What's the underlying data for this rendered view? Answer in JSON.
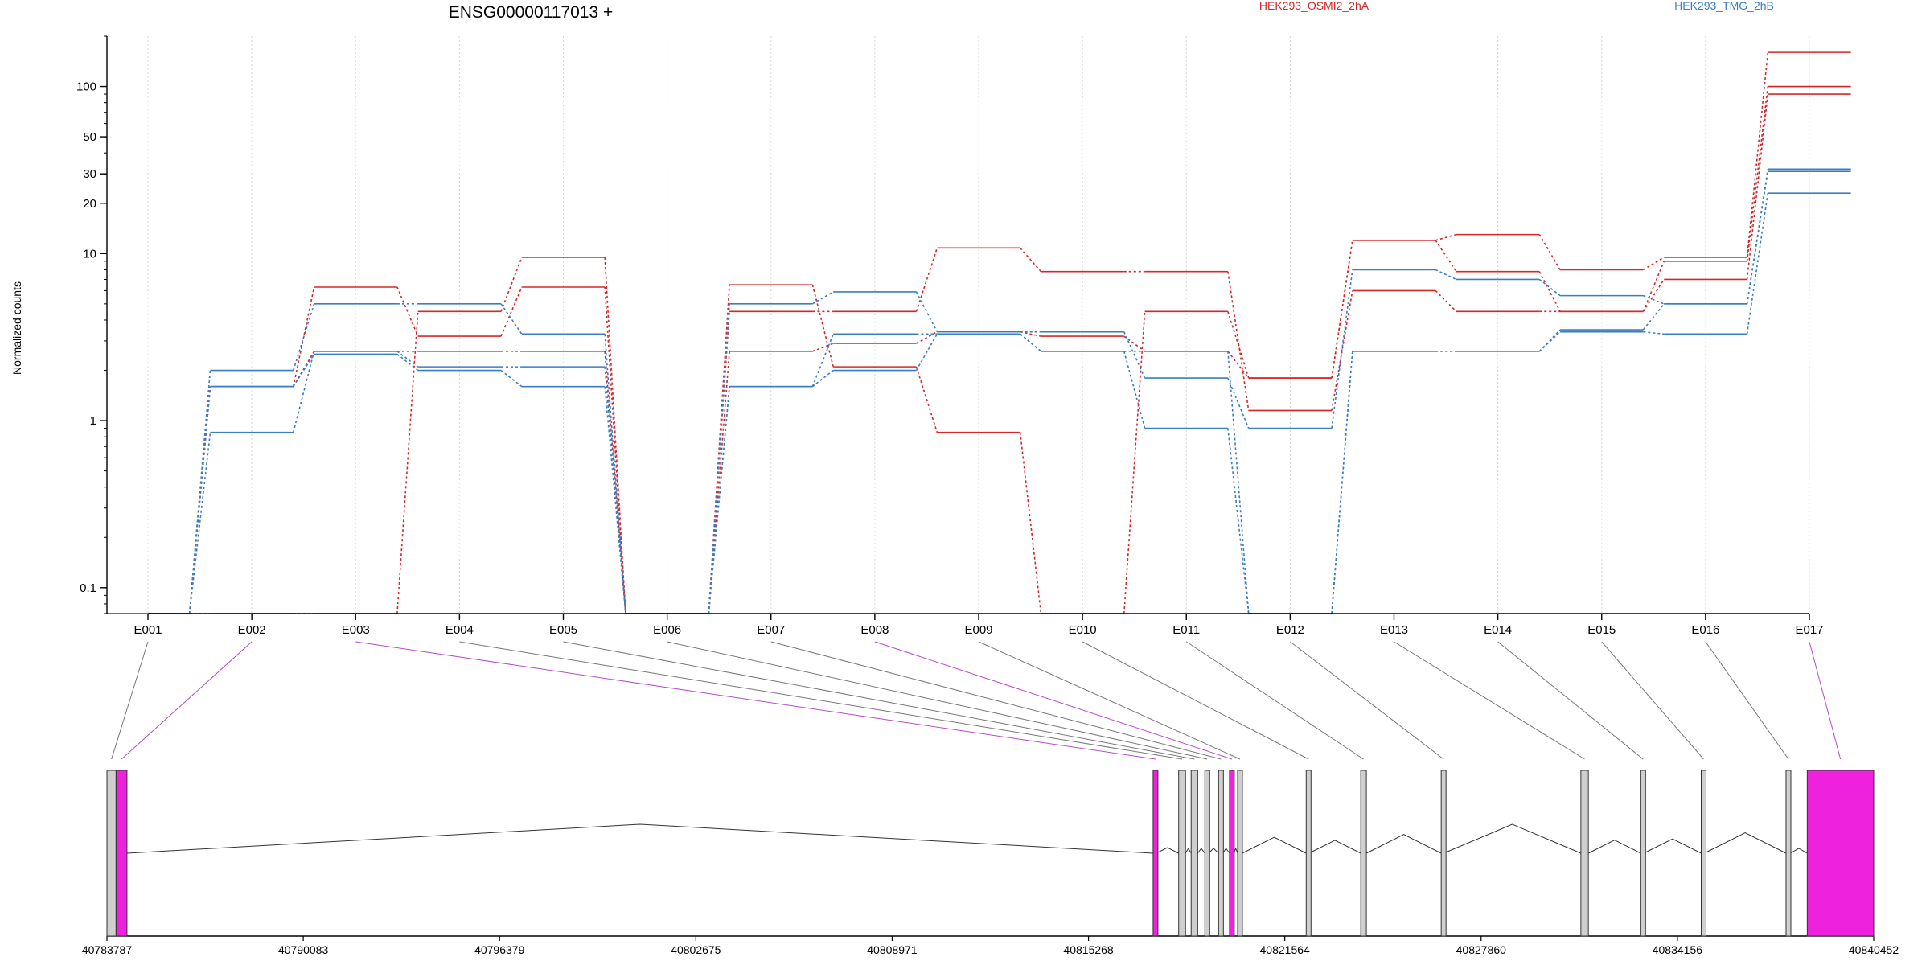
{
  "chart_data": {
    "type": "line",
    "title": "ENSG00000117013 +",
    "ylabel": "Normalized counts",
    "xlabel": "",
    "y_scale": "log",
    "ylim": [
      0.07,
      200
    ],
    "y_ticks": [
      "0.1",
      "1",
      "10",
      "20",
      "30",
      "50",
      "100"
    ],
    "y_tick_values": [
      0.1,
      1,
      10,
      20,
      30,
      50,
      100
    ],
    "legend": [
      {
        "name": "HEK293_OSMI2_2hA",
        "color": "#d62728"
      },
      {
        "name": "HEK293_TMG_2hB",
        "color": "#3a7dc2"
      }
    ],
    "legend_position": "top",
    "categories": [
      "E001",
      "E002",
      "E003",
      "E004",
      "E005",
      "E006",
      "E007",
      "E008",
      "E009",
      "E010",
      "E011",
      "E012",
      "E013",
      "E014",
      "E015",
      "E016",
      "E017"
    ],
    "series": [
      {
        "group": "HEK293_OSMI2_2hA",
        "color": "#d62728",
        "values": [
          0.07,
          0.07,
          0.07,
          4.5,
          9.5,
          0.07,
          6.5,
          2.1,
          0.85,
          0.07,
          4.5,
          1.8,
          12,
          13,
          8,
          9.5,
          160
        ]
      },
      {
        "group": "HEK293_OSMI2_2hA",
        "color": "#d62728",
        "values": [
          0.07,
          1.6,
          6.3,
          3.2,
          6.3,
          0.07,
          4.5,
          4.5,
          10.8,
          7.8,
          7.8,
          1.15,
          6,
          4.5,
          4.5,
          7,
          90
        ]
      },
      {
        "group": "HEK293_OSMI2_2hA",
        "color": "#d62728",
        "values": [
          0.07,
          1.6,
          2.6,
          2.6,
          2.6,
          0.07,
          2.6,
          2.9,
          3.4,
          3.2,
          2.6,
          1.8,
          12,
          7.8,
          4.5,
          9,
          100
        ]
      },
      {
        "group": "HEK293_TMG_2hB",
        "color": "#3a7dc2",
        "values": [
          0.07,
          2.0,
          5.0,
          5.0,
          3.3,
          0.07,
          5.0,
          5.9,
          3.4,
          3.4,
          1.8,
          0.9,
          8.0,
          7.0,
          5.6,
          5.0,
          32
        ]
      },
      {
        "group": "HEK293_TMG_2hB",
        "color": "#3a7dc2",
        "values": [
          0.07,
          0.85,
          2.6,
          2.1,
          2.1,
          0.07,
          1.6,
          3.3,
          3.3,
          2.6,
          2.6,
          0.07,
          2.6,
          2.6,
          3.5,
          5.0,
          31
        ]
      },
      {
        "group": "HEK293_TMG_2hB",
        "color": "#3a7dc2",
        "values": [
          0.07,
          1.6,
          2.5,
          2.0,
          1.6,
          0.07,
          1.6,
          2.0,
          3.3,
          2.6,
          0.9,
          0.07,
          2.6,
          2.6,
          3.4,
          3.3,
          23
        ]
      }
    ],
    "gene_model": {
      "coord_range": [
        40783787,
        40840452
      ],
      "coord_ticks": [
        40783787,
        40790083,
        40796379,
        40802675,
        40808971,
        40815268,
        40821564,
        40827860,
        40834156,
        40840452
      ],
      "highlight_color": "#ee22dd",
      "exons": [
        {
          "id": "E001",
          "start": 40783787,
          "end": 40784080,
          "highlight": false
        },
        {
          "id": "E002",
          "start": 40784080,
          "end": 40784430,
          "highlight": true
        },
        {
          "id": "E003",
          "start": 40817340,
          "end": 40817440,
          "highlight": true
        },
        {
          "id": "E004",
          "start": 40818160,
          "end": 40818380,
          "highlight": false
        },
        {
          "id": "E005",
          "start": 40818560,
          "end": 40818770,
          "highlight": false
        },
        {
          "id": "E006",
          "start": 40819000,
          "end": 40819120,
          "highlight": false
        },
        {
          "id": "E007",
          "start": 40819440,
          "end": 40819570,
          "highlight": false
        },
        {
          "id": "E008",
          "start": 40819790,
          "end": 40819930,
          "highlight": true
        },
        {
          "id": "E009",
          "start": 40820050,
          "end": 40820200,
          "highlight": false
        },
        {
          "id": "E010",
          "start": 40822250,
          "end": 40822340,
          "highlight": false
        },
        {
          "id": "E011",
          "start": 40824000,
          "end": 40824180,
          "highlight": false
        },
        {
          "id": "E012",
          "start": 40826580,
          "end": 40826660,
          "highlight": false
        },
        {
          "id": "E013",
          "start": 40831060,
          "end": 40831300,
          "highlight": false
        },
        {
          "id": "E014",
          "start": 40832980,
          "end": 40833080,
          "highlight": false
        },
        {
          "id": "E015",
          "start": 40834920,
          "end": 40835020,
          "highlight": false
        },
        {
          "id": "E016",
          "start": 40837640,
          "end": 40837780,
          "highlight": false
        },
        {
          "id": "E017",
          "start": 40838320,
          "end": 40840452,
          "highlight": true
        }
      ]
    }
  }
}
